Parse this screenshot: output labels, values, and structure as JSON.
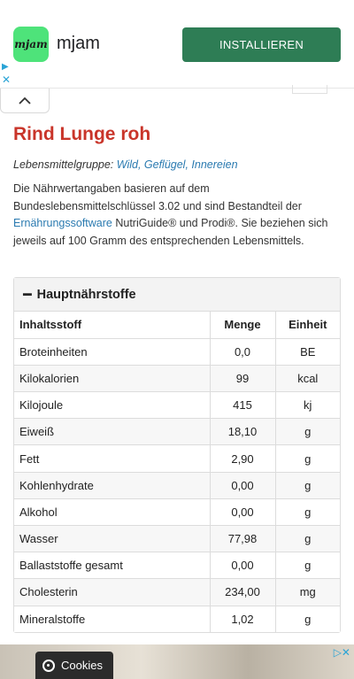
{
  "ad": {
    "logo_text": "mjam",
    "app_name": "mjam",
    "install_label": "INSTALLIEREN"
  },
  "page": {
    "title": "Rind Lunge roh",
    "group_label": "Lebensmittelgruppe:",
    "group_value": "Wild, Geflügel, Innereien",
    "desc_part1": "Die Nährwertangaben basieren auf dem Bundeslebensmittelschlüssel 3.02 und sind Bestandteil der ",
    "desc_link": "Ernährungssoftware",
    "desc_part2": " NutriGuide® und Prodi®. Sie beziehen sich jeweils auf 100 Gramm des entsprechenden Lebensmittels."
  },
  "panel": {
    "title": "Hauptnährstoffe",
    "columns": [
      "Inhaltsstoff",
      "Menge",
      "Einheit"
    ],
    "rows": [
      [
        "Broteinheiten",
        "0,0",
        "BE"
      ],
      [
        "Kilokalorien",
        "99",
        "kcal"
      ],
      [
        "Kilojoule",
        "415",
        "kj"
      ],
      [
        "Eiweiß",
        "18,10",
        "g"
      ],
      [
        "Fett",
        "2,90",
        "g"
      ],
      [
        "Kohlenhydrate",
        "0,00",
        "g"
      ],
      [
        "Alkohol",
        "0,00",
        "g"
      ],
      [
        "Wasser",
        "77,98",
        "g"
      ],
      [
        "Ballaststoffe gesamt",
        "0,00",
        "g"
      ],
      [
        "Cholesterin",
        "234,00",
        "mg"
      ],
      [
        "Mineralstoffe",
        "1,02",
        "g"
      ]
    ]
  },
  "cookies": {
    "label": "Cookies"
  },
  "colors": {
    "title": "#c9352a",
    "link": "#2a7ab0",
    "install_button": "#2e7d55"
  }
}
